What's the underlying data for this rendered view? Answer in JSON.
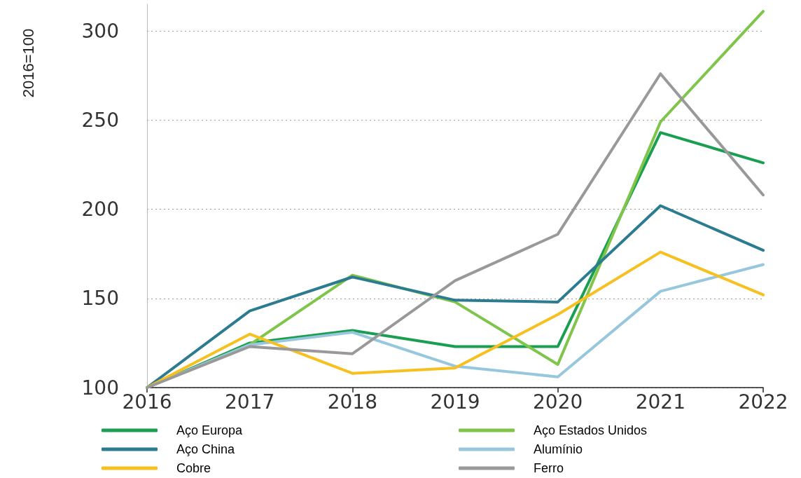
{
  "chart_data": {
    "type": "line",
    "ylabel": "2016=100",
    "categories": [
      "2016",
      "2017",
      "2018",
      "2019",
      "2020",
      "2021",
      "2022"
    ],
    "series": [
      {
        "name": "Aço Europa",
        "color": "#1a9e52",
        "values": [
          100,
          125,
          132,
          123,
          123,
          243,
          226
        ]
      },
      {
        "name": "Aço Estados Unidos",
        "color": "#7ec54a",
        "values": [
          100,
          124,
          163,
          148,
          113,
          249,
          311
        ]
      },
      {
        "name": "Aço China",
        "color": "#2b7b91",
        "values": [
          100,
          143,
          162,
          149,
          148,
          202,
          177
        ]
      },
      {
        "name": "Alumínio",
        "color": "#97c7dc",
        "values": [
          100,
          124,
          131,
          112,
          106,
          154,
          169
        ]
      },
      {
        "name": "Cobre",
        "color": "#f5c020",
        "values": [
          100,
          130,
          108,
          111,
          141,
          176,
          152
        ]
      },
      {
        "name": "Ferro",
        "color": "#999999",
        "values": [
          100,
          123,
          119,
          160,
          186,
          276,
          208
        ]
      }
    ],
    "ylim": [
      100,
      315
    ],
    "yticks": [
      100,
      150,
      200,
      250,
      300
    ],
    "grid": "y",
    "legend": "bottom",
    "marker": "none"
  }
}
